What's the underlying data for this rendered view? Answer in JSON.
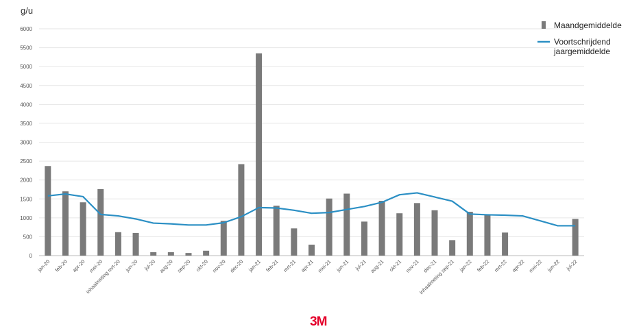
{
  "chart_data": {
    "type": "bar",
    "ylabel": "g/u",
    "ylim": [
      0,
      6000
    ],
    "yticks": [
      0,
      500,
      1000,
      1500,
      2000,
      2500,
      3000,
      3500,
      4000,
      4500,
      5000,
      5500,
      6000
    ],
    "grid": true,
    "legend_position": "top-right",
    "categories": [
      "jan-20",
      "feb-20",
      "apr-20",
      "mei-20",
      "inhaalmeting mrt-20",
      "jun-20",
      "jul-20",
      "aug-20",
      "sep-20",
      "okt-20",
      "nov-20",
      "dec-20",
      "jan-21",
      "feb-21",
      "mrt-21",
      "apr-21",
      "mei-21",
      "jun-21",
      "jul-21",
      "aug-21",
      "okt-21",
      "nov-21",
      "dec-21",
      "inhaalmeting sep-21",
      "jan-22",
      "feb-22",
      "mrt-22",
      "apr-22",
      "mei-22",
      "jun-22",
      "jul-22"
    ],
    "series": [
      {
        "name": "Maandgemiddelde",
        "type": "bar",
        "color": "#7a7a7a",
        "values": [
          2370,
          1700,
          1410,
          1760,
          620,
          600,
          90,
          90,
          70,
          130,
          920,
          2420,
          5350,
          1320,
          720,
          290,
          1510,
          1640,
          900,
          1450,
          1120,
          1390,
          1200,
          410,
          1160,
          1080,
          610,
          null,
          null,
          null,
          970
        ]
      },
      {
        "name": "Voortschrijdend jaargemiddelde",
        "type": "line",
        "color": "#2b8fc4",
        "values": [
          1580,
          1630,
          1560,
          1090,
          1050,
          970,
          860,
          840,
          810,
          810,
          870,
          1030,
          1270,
          1260,
          1200,
          1120,
          1140,
          1220,
          1300,
          1410,
          1610,
          1660,
          1550,
          1440,
          1100,
          1080,
          1070,
          1050,
          920,
          790,
          790
        ]
      }
    ]
  },
  "logo": "3M"
}
